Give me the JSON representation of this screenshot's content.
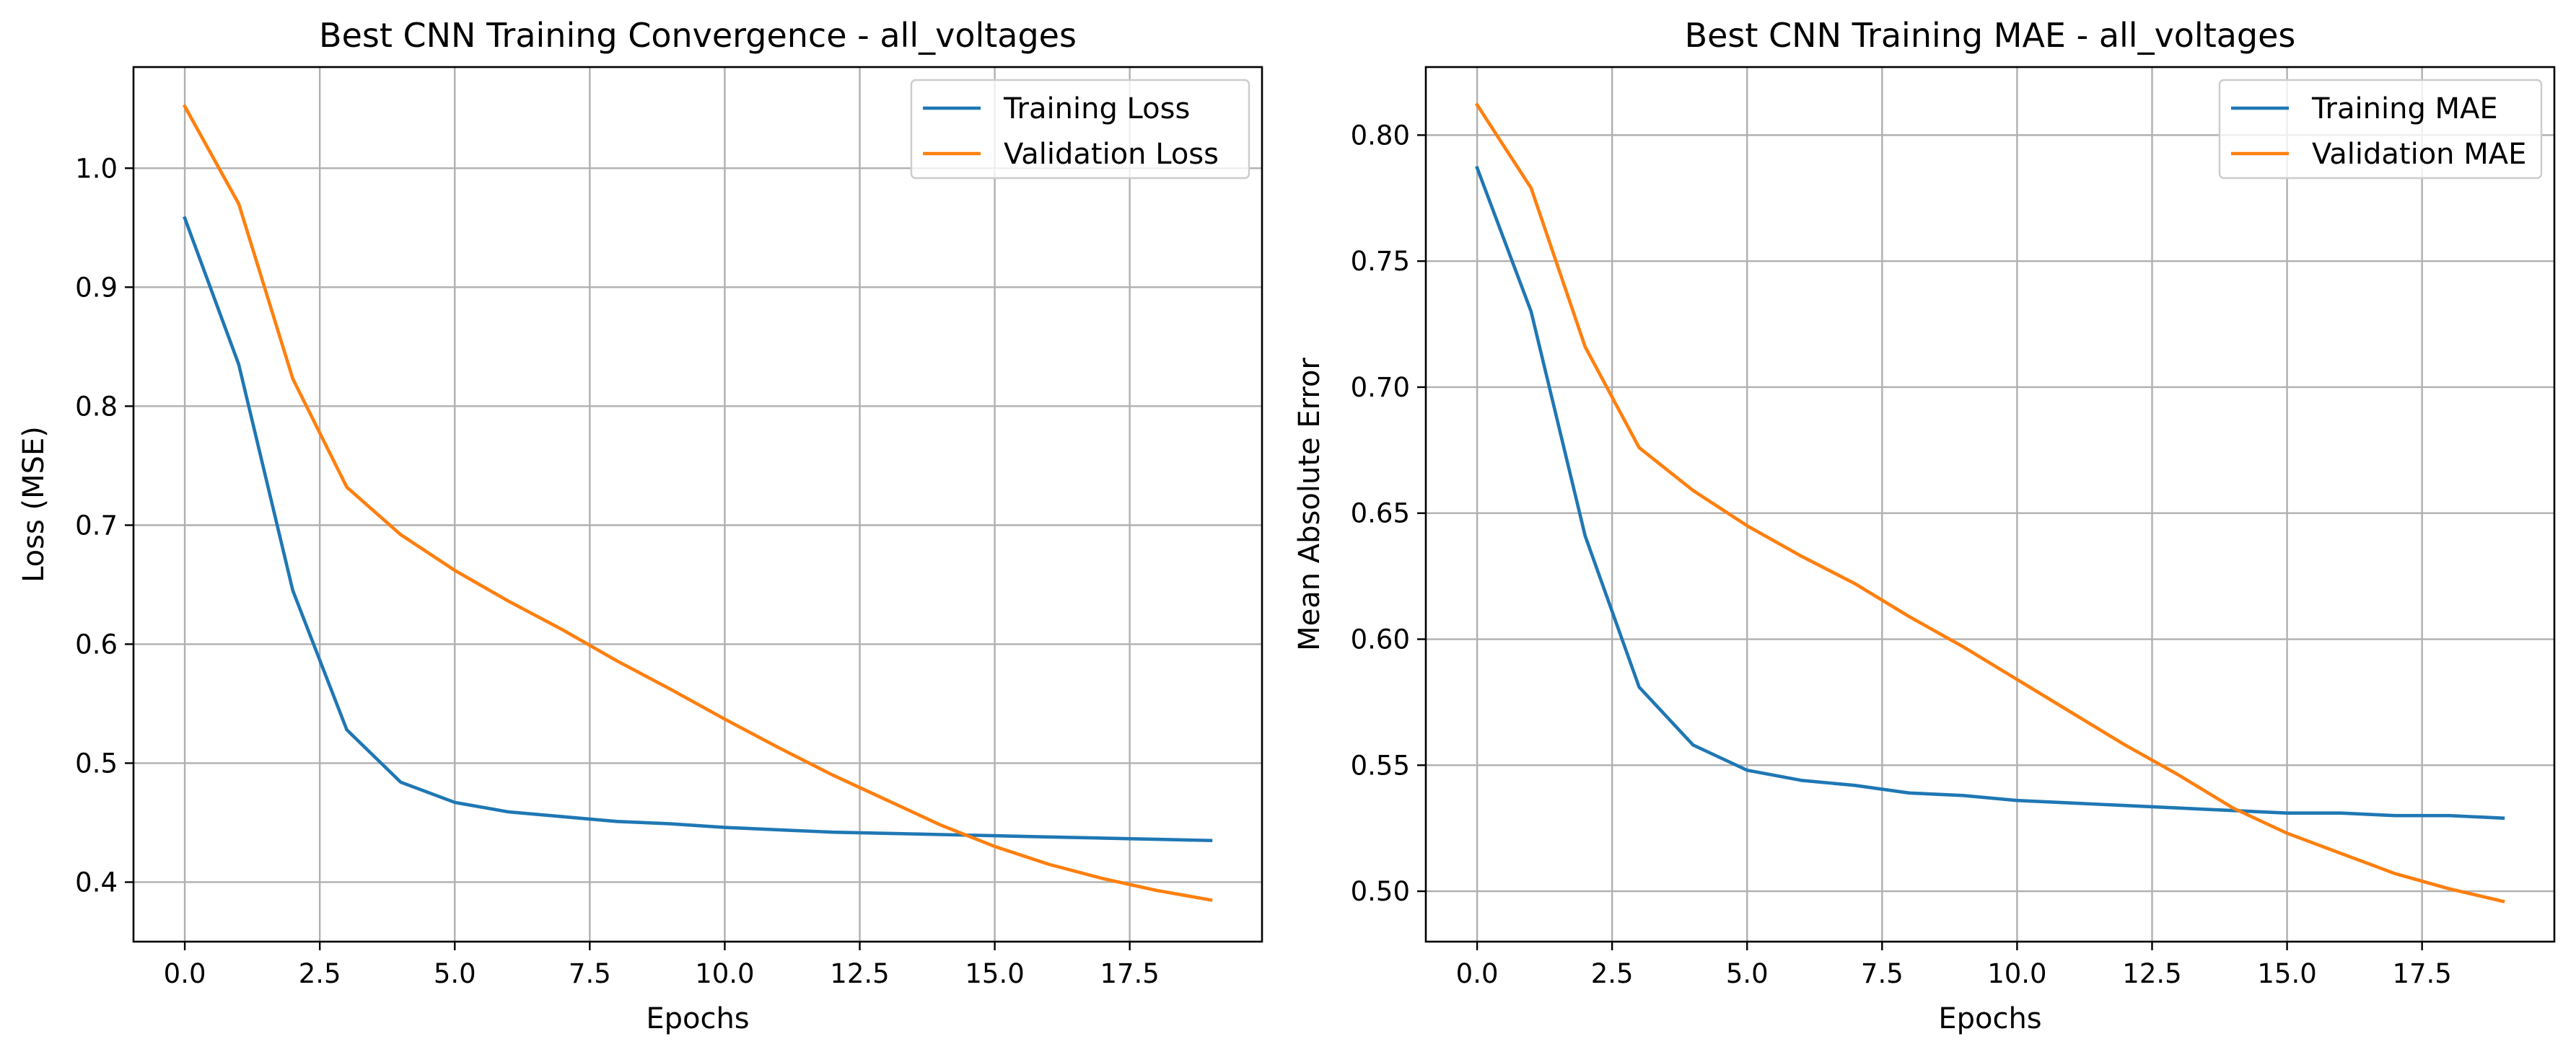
{
  "chart_data": [
    {
      "type": "line",
      "title": "Best CNN Training Convergence - all_voltages",
      "xlabel": "Epochs",
      "ylabel": "Loss (MSE)",
      "xlim": [
        -0.95,
        19.95
      ],
      "ylim": [
        0.35,
        1.085
      ],
      "xticks": [
        0.0,
        2.5,
        5.0,
        7.5,
        10.0,
        12.5,
        15.0,
        17.5
      ],
      "xtick_labels": [
        "0.0",
        "2.5",
        "5.0",
        "7.5",
        "10.0",
        "12.5",
        "15.0",
        "17.5"
      ],
      "yticks": [
        0.4,
        0.5,
        0.6,
        0.7,
        0.8,
        0.9,
        1.0
      ],
      "ytick_labels": [
        "0.4",
        "0.5",
        "0.6",
        "0.7",
        "0.8",
        "0.9",
        "1.0"
      ],
      "grid": true,
      "legend_position": "upper right",
      "x": [
        0,
        1,
        2,
        3,
        4,
        5,
        6,
        7,
        8,
        9,
        10,
        11,
        12,
        13,
        14,
        15,
        16,
        17,
        18,
        19
      ],
      "series": [
        {
          "name": "Training Loss",
          "color": "#1f77b4",
          "values": [
            0.958,
            0.835,
            0.645,
            0.528,
            0.484,
            0.467,
            0.459,
            0.455,
            0.451,
            0.449,
            0.446,
            0.444,
            0.442,
            0.441,
            0.44,
            0.439,
            0.438,
            0.437,
            0.436,
            0.435
          ]
        },
        {
          "name": "Validation Loss",
          "color": "#ff7f0e",
          "values": [
            1.052,
            0.97,
            0.823,
            0.732,
            0.692,
            0.662,
            0.636,
            0.612,
            0.586,
            0.562,
            0.537,
            0.513,
            0.49,
            0.469,
            0.448,
            0.43,
            0.415,
            0.403,
            0.393,
            0.385
          ]
        }
      ]
    },
    {
      "type": "line",
      "title": "Best CNN Training MAE - all_voltages",
      "xlabel": "Epochs",
      "ylabel": "Mean Absolute Error",
      "xlim": [
        -0.95,
        19.95
      ],
      "ylim": [
        0.48,
        0.827
      ],
      "xticks": [
        0.0,
        2.5,
        5.0,
        7.5,
        10.0,
        12.5,
        15.0,
        17.5
      ],
      "xtick_labels": [
        "0.0",
        "2.5",
        "5.0",
        "7.5",
        "10.0",
        "12.5",
        "15.0",
        "17.5"
      ],
      "yticks": [
        0.5,
        0.55,
        0.6,
        0.65,
        0.7,
        0.75,
        0.8
      ],
      "ytick_labels": [
        "0.50",
        "0.55",
        "0.60",
        "0.65",
        "0.70",
        "0.75",
        "0.80"
      ],
      "grid": true,
      "legend_position": "upper right",
      "x": [
        0,
        1,
        2,
        3,
        4,
        5,
        6,
        7,
        8,
        9,
        10,
        11,
        12,
        13,
        14,
        15,
        16,
        17,
        18,
        19
      ],
      "series": [
        {
          "name": "Training MAE",
          "color": "#1f77b4",
          "values": [
            0.787,
            0.73,
            0.641,
            0.581,
            0.558,
            0.548,
            0.544,
            0.542,
            0.539,
            0.538,
            0.536,
            0.535,
            0.534,
            0.533,
            0.532,
            0.531,
            0.531,
            0.53,
            0.53,
            0.529
          ]
        },
        {
          "name": "Validation MAE",
          "color": "#ff7f0e",
          "values": [
            0.812,
            0.779,
            0.716,
            0.676,
            0.659,
            0.645,
            0.633,
            0.622,
            0.609,
            0.597,
            0.584,
            0.571,
            0.558,
            0.546,
            0.533,
            0.523,
            0.515,
            0.507,
            0.501,
            0.496
          ]
        }
      ]
    }
  ]
}
